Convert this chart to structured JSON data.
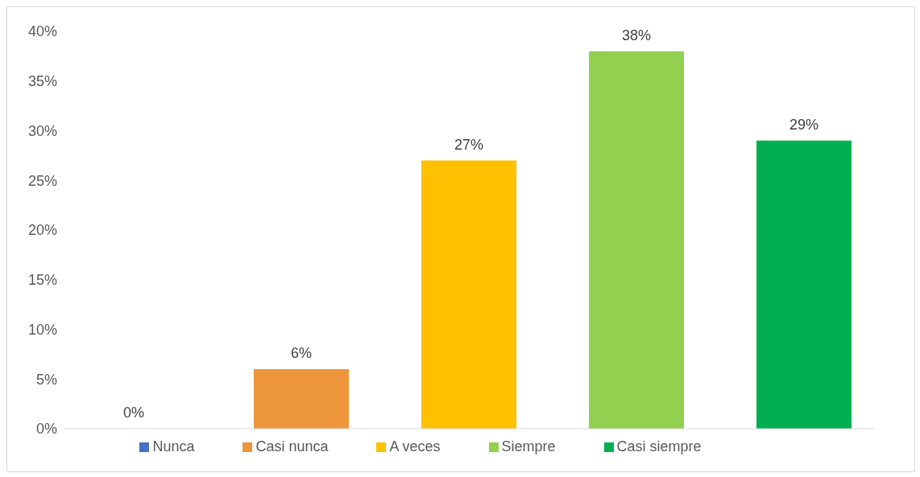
{
  "chart_data": {
    "type": "bar",
    "categories": [
      null
    ],
    "series": [
      {
        "name": "Nunca",
        "color": "#4472c4",
        "values": [
          0
        ],
        "value_labels": [
          "0%"
        ]
      },
      {
        "name": "Casi nunca",
        "color": "#ed963c",
        "values": [
          6
        ],
        "value_labels": [
          "6%"
        ]
      },
      {
        "name": "A veces",
        "color": "#ffc000",
        "values": [
          27
        ],
        "value_labels": [
          "27%"
        ]
      },
      {
        "name": "Siempre",
        "color": "#92d050",
        "values": [
          38
        ],
        "value_labels": [
          "38%"
        ]
      },
      {
        "name": "Casi siempre",
        "color": "#00b050",
        "values": [
          29
        ],
        "value_labels": [
          "29%"
        ]
      }
    ],
    "ylim": [
      0,
      40
    ],
    "yticks": [
      {
        "value": 0,
        "label": "0%"
      },
      {
        "value": 5,
        "label": "5%"
      },
      {
        "value": 10,
        "label": "10%"
      },
      {
        "value": 15,
        "label": "15%"
      },
      {
        "value": 20,
        "label": "20%"
      },
      {
        "value": 25,
        "label": "25%"
      },
      {
        "value": 30,
        "label": "30%"
      },
      {
        "value": 35,
        "label": "35%"
      },
      {
        "value": 40,
        "label": "40%"
      }
    ],
    "grid": false,
    "legend": "bottom",
    "tick_labels": "y"
  }
}
